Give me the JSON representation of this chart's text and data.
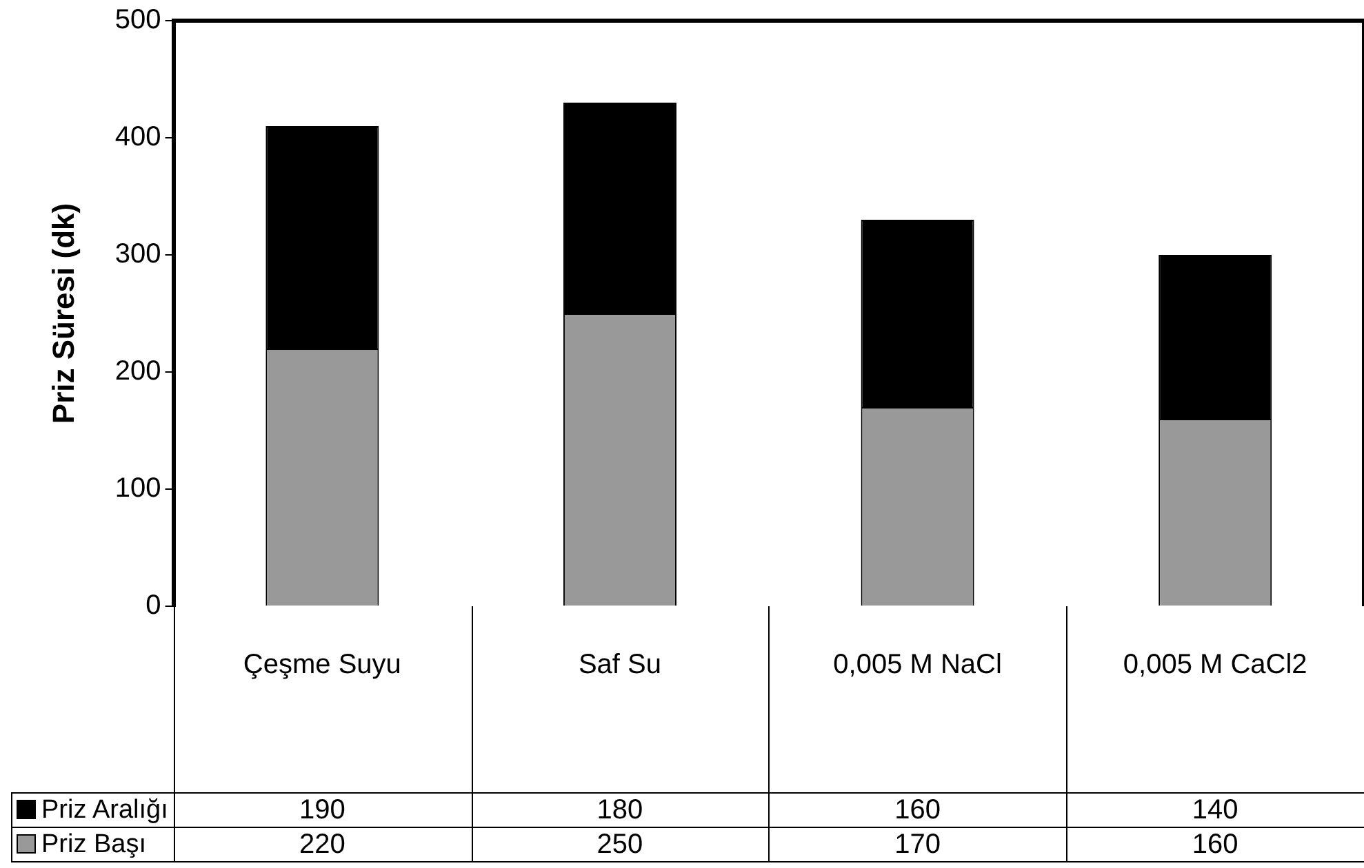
{
  "chart_data": {
    "type": "bar",
    "stacked": true,
    "ylabel": "Priz Süresi (dk)",
    "categories": [
      "Çeşme Suyu",
      "Saf Su",
      "0,005 M NaCl",
      "0,005 M CaCl2"
    ],
    "series": [
      {
        "name": "Priz Başı",
        "color": "#999999",
        "values": [
          220,
          250,
          170,
          160
        ]
      },
      {
        "name": "Priz Aralığı",
        "color": "#000000",
        "values": [
          190,
          180,
          160,
          140
        ]
      }
    ],
    "ylim": [
      0,
      500
    ],
    "yticks": [
      0,
      100,
      200,
      300,
      400,
      500
    ],
    "grid": false,
    "legend": "bottom",
    "data_labels": true
  }
}
